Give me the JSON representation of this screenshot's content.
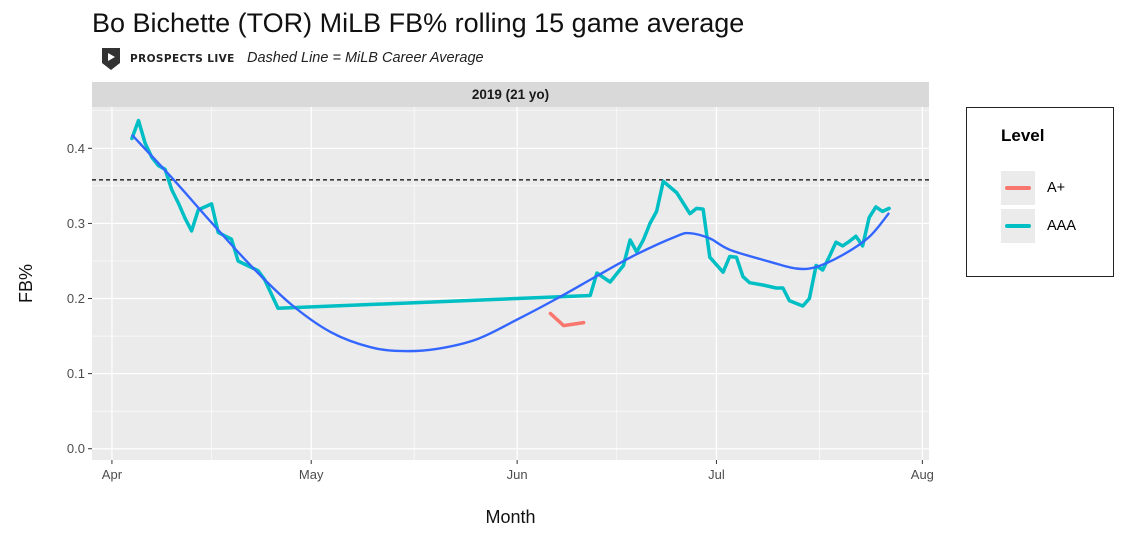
{
  "title": "Bo Bichette (TOR) MiLB FB% rolling 15 game average",
  "brand": "PROSPECTS LIVE",
  "subtitle": "Dashed Line = MiLB Career Average",
  "colors": {
    "panel_bg": "#ebebeb",
    "strip_bg": "#d9d9d9",
    "grid": "#ffffff",
    "A+": "#f8766d",
    "AAA": "#00bfc4",
    "smooth": "#3366ff",
    "career_line": "#000000"
  },
  "chart_data": {
    "type": "line",
    "facet": "2019 (21 yo)",
    "xlabel": "Month",
    "ylabel": "FB%",
    "x_ticks": [
      "Apr",
      "May",
      "Jun",
      "Jul",
      "Aug"
    ],
    "x_tick_dates": [
      "2019-04-01",
      "2019-05-01",
      "2019-06-01",
      "2019-07-01",
      "2019-08-01"
    ],
    "xlim": [
      "2019-03-29",
      "2019-08-02"
    ],
    "y_ticks": [
      "0.0",
      "0.1",
      "0.2",
      "0.3",
      "0.4"
    ],
    "ylim": [
      -0.015,
      0.455
    ],
    "career_average": 0.358,
    "grid": true,
    "legend": {
      "title": "Level",
      "position": "right"
    },
    "series": [
      {
        "name": "A+",
        "points": [
          [
            "2019-06-06",
            0.18
          ],
          [
            "2019-06-08",
            0.164
          ],
          [
            "2019-06-11",
            0.168
          ]
        ]
      },
      {
        "name": "AAA",
        "points": [
          [
            "2019-04-04",
            0.413
          ],
          [
            "2019-04-05",
            0.437
          ],
          [
            "2019-04-06",
            0.407
          ],
          [
            "2019-04-07",
            0.388
          ],
          [
            "2019-04-08",
            0.377
          ],
          [
            "2019-04-09",
            0.372
          ],
          [
            "2019-04-10",
            0.345
          ],
          [
            "2019-04-11",
            0.327
          ],
          [
            "2019-04-12",
            0.307
          ],
          [
            "2019-04-13",
            0.29
          ],
          [
            "2019-04-14",
            0.318
          ],
          [
            "2019-04-16",
            0.326
          ],
          [
            "2019-04-17",
            0.288
          ],
          [
            "2019-04-19",
            0.279
          ],
          [
            "2019-04-20",
            0.25
          ],
          [
            "2019-04-23",
            0.237
          ],
          [
            "2019-04-24",
            0.225
          ],
          [
            "2019-04-26",
            0.187
          ],
          [
            "2019-06-12",
            0.204
          ],
          [
            "2019-06-13",
            0.234
          ],
          [
            "2019-06-15",
            0.222
          ],
          [
            "2019-06-17",
            0.244
          ],
          [
            "2019-06-18",
            0.278
          ],
          [
            "2019-06-19",
            0.262
          ],
          [
            "2019-06-20",
            0.278
          ],
          [
            "2019-06-21",
            0.3
          ],
          [
            "2019-06-22",
            0.316
          ],
          [
            "2019-06-23",
            0.356
          ],
          [
            "2019-06-25",
            0.341
          ],
          [
            "2019-06-27",
            0.313
          ],
          [
            "2019-06-28",
            0.32
          ],
          [
            "2019-06-29",
            0.319
          ],
          [
            "2019-06-30",
            0.255
          ],
          [
            "2019-07-02",
            0.235
          ],
          [
            "2019-07-03",
            0.256
          ],
          [
            "2019-07-04",
            0.255
          ],
          [
            "2019-07-05",
            0.229
          ],
          [
            "2019-07-06",
            0.221
          ],
          [
            "2019-07-08",
            0.218
          ],
          [
            "2019-07-10",
            0.214
          ],
          [
            "2019-07-11",
            0.214
          ],
          [
            "2019-07-12",
            0.197
          ],
          [
            "2019-07-14",
            0.19
          ],
          [
            "2019-07-15",
            0.2
          ],
          [
            "2019-07-16",
            0.244
          ],
          [
            "2019-07-17",
            0.238
          ],
          [
            "2019-07-18",
            0.256
          ],
          [
            "2019-07-19",
            0.275
          ],
          [
            "2019-07-20",
            0.27
          ],
          [
            "2019-07-21",
            0.276
          ],
          [
            "2019-07-22",
            0.283
          ],
          [
            "2019-07-23",
            0.27
          ],
          [
            "2019-07-24",
            0.308
          ],
          [
            "2019-07-25",
            0.322
          ],
          [
            "2019-07-26",
            0.316
          ],
          [
            "2019-07-27",
            0.32
          ]
        ]
      }
    ],
    "trend": {
      "name": "smooth",
      "points": [
        [
          "2019-04-04",
          0.418
        ],
        [
          "2019-04-10",
          0.361
        ],
        [
          "2019-04-16",
          0.301
        ],
        [
          "2019-04-22",
          0.243
        ],
        [
          "2019-04-28",
          0.192
        ],
        [
          "2019-05-04",
          0.155
        ],
        [
          "2019-05-10",
          0.135
        ],
        [
          "2019-05-15",
          0.13
        ],
        [
          "2019-05-20",
          0.133
        ],
        [
          "2019-05-26",
          0.146
        ],
        [
          "2019-06-01",
          0.172
        ],
        [
          "2019-06-07",
          0.2
        ],
        [
          "2019-06-13",
          0.23
        ],
        [
          "2019-06-19",
          0.259
        ],
        [
          "2019-06-25",
          0.283
        ],
        [
          "2019-06-27",
          0.287
        ],
        [
          "2019-06-30",
          0.28
        ],
        [
          "2019-07-03",
          0.265
        ],
        [
          "2019-07-09",
          0.249
        ],
        [
          "2019-07-13",
          0.24
        ],
        [
          "2019-07-16",
          0.242
        ],
        [
          "2019-07-20",
          0.258
        ],
        [
          "2019-07-24",
          0.282
        ],
        [
          "2019-07-27",
          0.314
        ]
      ]
    }
  }
}
